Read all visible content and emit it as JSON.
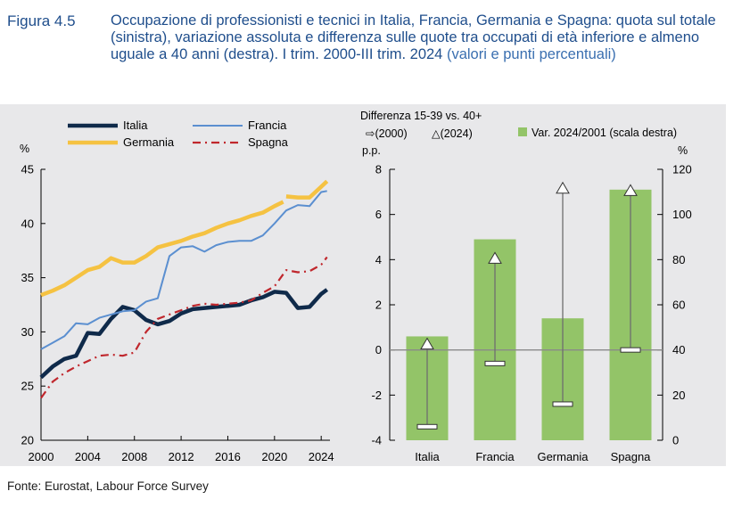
{
  "figure_label": "Figura 4.5",
  "title": "Occupazione di professionisti e tecnici in Italia, Francia, Germania e Spagna: quota sul totale (sinistra), variazione assoluta e differenza sulle quote tra occupati di età inferiore e almeno uguale a 40 anni (destra). I trim. 2000-III trim. 2024",
  "title_unit": "(valori e punti percentuali)",
  "source": "Fonte: Eurostat, Labour Force Survey",
  "colors": {
    "italia": "#0f2a4a",
    "francia": "#5b8fd0",
    "germania": "#f5c242",
    "spagna": "#c0272d",
    "bar": "#93c468",
    "panel": "#e8e8ea"
  },
  "chart_data": [
    {
      "type": "line",
      "ylabel": "%",
      "ylim": [
        20,
        45
      ],
      "yticks": [
        "20",
        "25",
        "30",
        "35",
        "40",
        "45"
      ],
      "xlim": [
        2000,
        2024.75
      ],
      "xticks": [
        "2000",
        "2004",
        "2008",
        "2012",
        "2016",
        "2020",
        "2024"
      ],
      "legend_position": "top",
      "series": [
        {
          "name": "Italia",
          "key": "italia",
          "x": [
            2000,
            2001,
            2002,
            2003,
            2004,
            2005,
            2006,
            2007,
            2008,
            2009,
            2010,
            2011,
            2012,
            2013,
            2014,
            2015,
            2016,
            2017,
            2018,
            2019,
            2020,
            2021,
            2022,
            2023,
            2024,
            2024.5
          ],
          "y": [
            25.8,
            26.8,
            27.5,
            27.8,
            29.9,
            29.8,
            31.2,
            32.3,
            32.0,
            31.1,
            30.7,
            31.0,
            31.7,
            32.1,
            32.2,
            32.3,
            32.4,
            32.5,
            32.9,
            33.2,
            33.7,
            33.6,
            32.2,
            32.3,
            33.5,
            33.9
          ]
        },
        {
          "name": "Francia",
          "key": "francia",
          "x": [
            2000,
            2001,
            2002,
            2003,
            2004,
            2005,
            2006,
            2007,
            2008,
            2009,
            2010,
            2011,
            2012,
            2013,
            2014,
            2015,
            2016,
            2017,
            2018,
            2019,
            2020,
            2021,
            2022,
            2023,
            2024,
            2024.5
          ],
          "y": [
            28.4,
            29.0,
            29.6,
            30.8,
            30.7,
            31.3,
            31.6,
            31.9,
            32.0,
            32.8,
            33.1,
            37.0,
            37.8,
            37.9,
            37.4,
            38.0,
            38.3,
            38.4,
            38.4,
            38.9,
            40.0,
            41.2,
            41.7,
            41.6,
            42.9,
            43.0
          ]
        },
        {
          "name": "Germania",
          "key": "germania",
          "x": [
            2000,
            2001,
            2002,
            2003,
            2004,
            2005,
            2006,
            2007,
            2008,
            2009,
            2010,
            2011,
            2012,
            2013,
            2014,
            2015,
            2016,
            2017,
            2018,
            2019,
            2020,
            2020.75,
            2021,
            2022,
            2023,
            2024,
            2024.5
          ],
          "y": [
            33.4,
            33.8,
            34.3,
            35.0,
            35.7,
            36.0,
            36.8,
            36.4,
            36.4,
            37.0,
            37.8,
            38.1,
            38.4,
            38.8,
            39.1,
            39.6,
            40.0,
            40.3,
            40.7,
            41.0,
            41.6,
            42.0,
            42.5,
            42.4,
            42.4,
            43.4,
            43.9
          ],
          "gap_after": 2020.75
        },
        {
          "name": "Spagna",
          "key": "spagna",
          "x": [
            2000,
            2001,
            2002,
            2003,
            2004,
            2005,
            2006,
            2007,
            2008,
            2009,
            2010,
            2011,
            2012,
            2013,
            2014,
            2015,
            2016,
            2017,
            2018,
            2019,
            2020,
            2021,
            2022,
            2023,
            2024,
            2024.5
          ],
          "y": [
            23.9,
            25.4,
            26.2,
            26.8,
            27.3,
            27.8,
            27.9,
            27.8,
            28.1,
            30.0,
            31.2,
            31.6,
            32.0,
            32.4,
            32.6,
            32.5,
            32.6,
            32.7,
            32.9,
            33.6,
            34.2,
            35.7,
            35.5,
            35.6,
            36.2,
            36.9
          ]
        }
      ]
    },
    {
      "type": "bar",
      "categories": [
        "Italia",
        "Francia",
        "Germania",
        "Spagna"
      ],
      "left_axis_title": "Differenza 15-39 vs. 40+",
      "left_axis_unit": "p.p.",
      "left_ylim": [
        -4,
        8
      ],
      "left_yticks": [
        "-4",
        "-2",
        "0",
        "2",
        "4",
        "6",
        "8"
      ],
      "right_axis_unit": "%",
      "right_ylim": [
        0,
        120
      ],
      "right_yticks": [
        "0",
        "20",
        "40",
        "60",
        "80",
        "100",
        "120"
      ],
      "legend_2000": "⇨(2000)",
      "legend_2024": "△(2024)",
      "bar_series_name": "Var. 2024/2001 (scala destra)",
      "bar_values": [
        46,
        89,
        54,
        111
      ],
      "diff_2000": [
        -3.4,
        -0.6,
        -2.4,
        0.0
      ],
      "diff_2024": [
        0.2,
        4.0,
        7.1,
        7.0
      ]
    }
  ]
}
